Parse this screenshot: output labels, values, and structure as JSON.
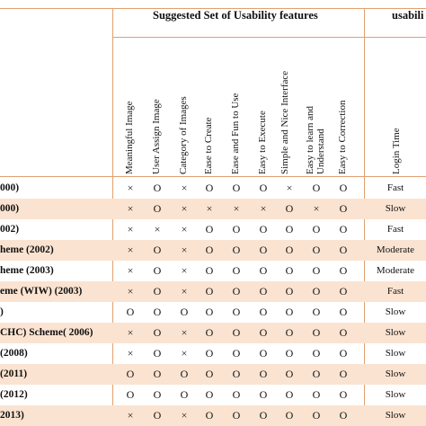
{
  "header": {
    "suggested_title": "Suggested Set of Usability features",
    "usability_title": "usabili"
  },
  "columns": [
    "Meaningful Image",
    "User Assign Image",
    "Category of Images",
    "Ease to Create",
    "Ease and Fun to Use",
    "Easy to Execute",
    "Simple and Nice Interface",
    "Easy to learn and Understand",
    "Easy to Correction"
  ],
  "time_column": "Login Time",
  "rows": [
    {
      "label": "000)",
      "marks": [
        "×",
        "O",
        "×",
        "O",
        "O",
        "O",
        "×",
        "O",
        "O"
      ],
      "time": "Fast"
    },
    {
      "label": "000)",
      "marks": [
        "×",
        "O",
        "×",
        "×",
        "×",
        "×",
        "O",
        "×",
        "O"
      ],
      "time": "Slow"
    },
    {
      "label": "002)",
      "marks": [
        "×",
        "×",
        "×",
        "O",
        "O",
        "O",
        "O",
        "O",
        "O"
      ],
      "time": "Fast"
    },
    {
      "label": "heme (2002)",
      "marks": [
        "×",
        "O",
        "×",
        "O",
        "O",
        "O",
        "O",
        "O",
        "O"
      ],
      "time": "Moderate"
    },
    {
      "label": "heme (2003)",
      "marks": [
        "×",
        "O",
        "×",
        "O",
        "O",
        "O",
        "O",
        "O",
        "O"
      ],
      "time": "Moderate"
    },
    {
      "label": "eme (WIW)  (2003)",
      "marks": [
        "×",
        "O",
        "×",
        "O",
        "O",
        "O",
        "O",
        "O",
        "O"
      ],
      "time": "Fast"
    },
    {
      "label": ")",
      "marks": [
        "O",
        "O",
        "O",
        "O",
        "O",
        "O",
        "O",
        "O",
        "O"
      ],
      "time": "Slow"
    },
    {
      "label": "CHC) Scheme( 2006)",
      "marks": [
        "×",
        "O",
        "×",
        "O",
        "O",
        "O",
        "O",
        "O",
        "O"
      ],
      "time": "Slow"
    },
    {
      "label": "(2008)",
      "marks": [
        "×",
        "O",
        "×",
        "O",
        "O",
        "O",
        "O",
        "O",
        "O"
      ],
      "time": "Slow"
    },
    {
      "label": "(2011)",
      "marks": [
        "O",
        "O",
        "O",
        "O",
        "O",
        "O",
        "O",
        "O",
        "O"
      ],
      "time": "Slow"
    },
    {
      "label": "(2012)",
      "marks": [
        "O",
        "O",
        "O",
        "O",
        "O",
        "O",
        "O",
        "O",
        "O"
      ],
      "time": "Slow"
    },
    {
      "label": "2013)",
      "marks": [
        "×",
        "O",
        "×",
        "O",
        "O",
        "O",
        "O",
        "O",
        "O"
      ],
      "time": "Slow"
    }
  ]
}
